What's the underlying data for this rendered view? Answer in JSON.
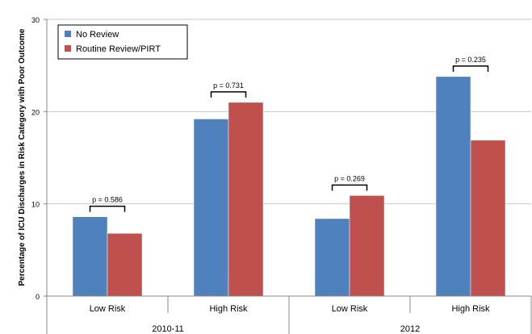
{
  "chart_data": {
    "type": "bar",
    "title": "",
    "ylabel": "Percentage of ICU Discharges in Risk Category with Poor Outcome",
    "xlabel": "",
    "ylim": [
      0,
      30
    ],
    "yticks": [
      0,
      10,
      20,
      30
    ],
    "grid": true,
    "legend_position": "top-left",
    "categories": [
      "Low Risk",
      "High Risk",
      "Low Risk",
      "High Risk"
    ],
    "groups": [
      {
        "label": "2010-11",
        "categories": [
          "Low Risk",
          "High Risk"
        ]
      },
      {
        "label": "2012",
        "categories": [
          "Low Risk",
          "High Risk"
        ]
      }
    ],
    "series": [
      {
        "name": "No Review",
        "color": "#4f81bd",
        "values": [
          8.6,
          19.2,
          8.4,
          23.8
        ]
      },
      {
        "name": "Routine Review/PIRT",
        "color": "#c0504d",
        "values": [
          6.8,
          21.0,
          10.9,
          16.9
        ]
      }
    ],
    "annotations": [
      "p = 0.586",
      "p = 0.731",
      "p = 0.269",
      "p = 0.235"
    ]
  }
}
